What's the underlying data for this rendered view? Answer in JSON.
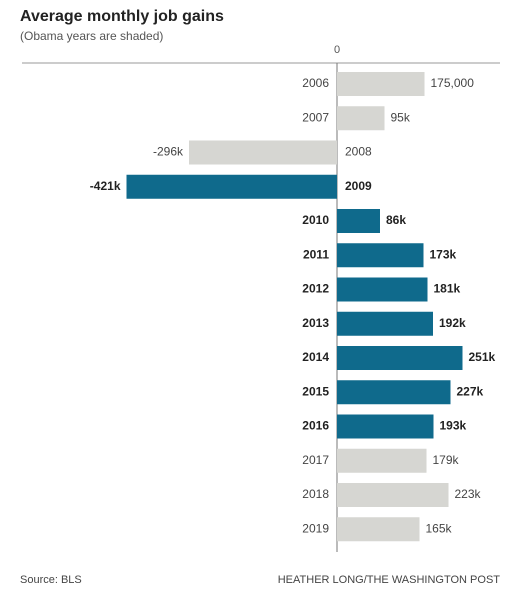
{
  "chart_data": {
    "type": "hbar",
    "title": "Average monthly job gains",
    "subtitle": "(Obama years are shaded)",
    "categories": [
      "2006",
      "2007",
      "2008",
      "2009",
      "2010",
      "2011",
      "2012",
      "2013",
      "2014",
      "2015",
      "2016",
      "2017",
      "2018",
      "2019"
    ],
    "values": [
      175000,
      95000,
      -296000,
      -421000,
      86000,
      173000,
      181000,
      192000,
      251000,
      227000,
      193000,
      179000,
      223000,
      165000
    ],
    "value_labels": [
      "175,000",
      "95k",
      "-296k",
      "-421k",
      "86k",
      "173k",
      "181k",
      "192k",
      "251k",
      "227k",
      "193k",
      "179k",
      "223k",
      "165k"
    ],
    "colors": [
      "#d6d6d2",
      "#d6d6d2",
      "#d6d6d2",
      "#0f6a8c",
      "#0f6a8c",
      "#0f6a8c",
      "#0f6a8c",
      "#0f6a8c",
      "#0f6a8c",
      "#0f6a8c",
      "#0f6a8c",
      "#d6d6d2",
      "#d6d6d2",
      "#d6d6d2"
    ],
    "highlight_color": "#0f6a8c",
    "xlim": [
      -630000,
      330000
    ],
    "xticks": [
      0
    ],
    "source": "Source: BLS",
    "credit": "HEATHER LONG/THE WASHINGTON POST"
  }
}
